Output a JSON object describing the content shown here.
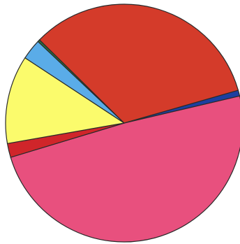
{
  "chart_data": {
    "type": "pie",
    "slices": [
      {
        "value": 0.8,
        "color": "#1c3fa0"
      },
      {
        "value": 49.0,
        "color": "#e8507e"
      },
      {
        "value": 1.9,
        "color": "#d0252a"
      },
      {
        "value": 12.0,
        "color": "#fbfb6c"
      },
      {
        "value": 2.8,
        "color": "#5aace8"
      },
      {
        "value": 0.3,
        "color": "#2e6e3c"
      },
      {
        "value": 33.2,
        "color": "#d43b2a"
      }
    ]
  }
}
